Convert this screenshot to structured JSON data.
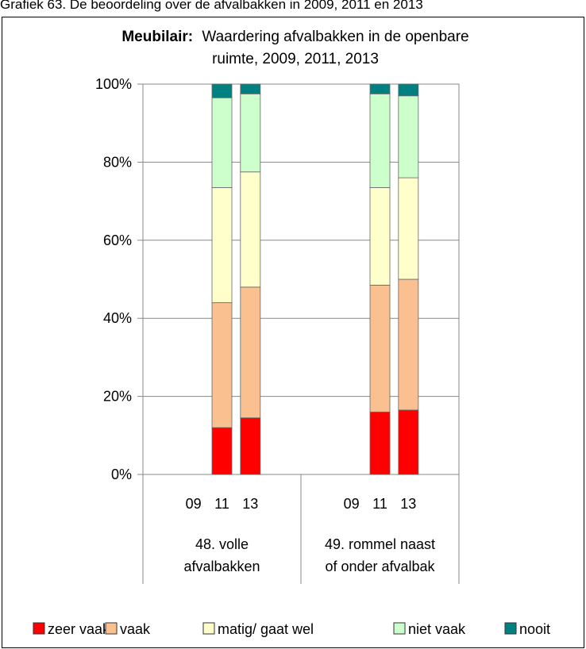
{
  "caption": "Grafiek 63. De beoordeling over de afvalbakken in 2009, 2011 en 2013",
  "chart_data": {
    "type": "bar",
    "stacked": true,
    "percent": true,
    "title_bold": "Meubilair:",
    "title_rest": "Waardering afvalbakken  in de openbare",
    "title_line2": "ruimte, 2009, 2011, 2013",
    "ylim": [
      0,
      100
    ],
    "yticks": [
      "0%",
      "20%",
      "40%",
      "60%",
      "80%",
      "100%"
    ],
    "groups": [
      {
        "label_line1": "48. volle",
        "label_line2": "afvalbakken",
        "years": [
          "09",
          "11",
          "13"
        ]
      },
      {
        "label_line1": "49. rommel naast",
        "label_line2": "of onder afvalbak",
        "years": [
          "09",
          "11",
          "13"
        ]
      }
    ],
    "series": [
      {
        "name": "zeer vaak",
        "color": "#ff0000",
        "values": [
          [
            0,
            12,
            14.5
          ],
          [
            0,
            16,
            16.5
          ]
        ]
      },
      {
        "name": "vaak",
        "color": "#fac090",
        "values": [
          [
            0,
            32,
            33.5
          ],
          [
            0,
            32.5,
            33.5
          ]
        ]
      },
      {
        "name": "matig/ gaat wel",
        "color": "#ffffcc",
        "values": [
          [
            0,
            29.5,
            29.5
          ],
          [
            0,
            25,
            26
          ]
        ]
      },
      {
        "name": "niet vaak",
        "color": "#ccffcc",
        "values": [
          [
            0,
            23,
            20
          ],
          [
            0,
            24,
            21
          ]
        ]
      },
      {
        "name": "nooit",
        "color": "#008080",
        "values": [
          [
            0,
            3.5,
            2.5
          ],
          [
            0,
            2.5,
            3
          ]
        ]
      }
    ],
    "grid": true,
    "legend_position": "bottom"
  }
}
